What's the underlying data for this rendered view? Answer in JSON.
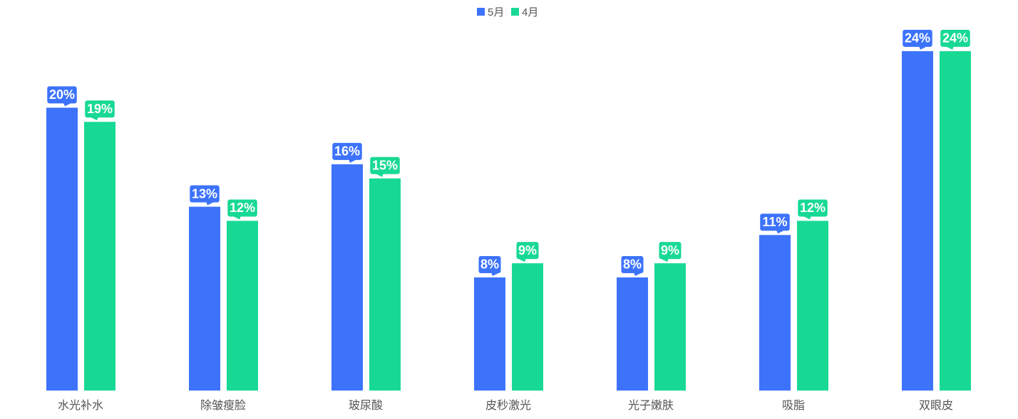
{
  "chart_data": {
    "type": "bar",
    "categories": [
      "水光补水",
      "除皱瘦脸",
      "玻尿酸",
      "皮秒激光",
      "光子嫩肤",
      "吸脂",
      "双眼皮"
    ],
    "series": [
      {
        "name": "5月",
        "color": "#3d73fb",
        "values": [
          20,
          13,
          16,
          8,
          8,
          11,
          24
        ],
        "value_labels": [
          "20%",
          "13%",
          "16%",
          "8%",
          "8%",
          "11%",
          "24%"
        ]
      },
      {
        "name": "4月",
        "color": "#18d994",
        "values": [
          19,
          12,
          15,
          9,
          9,
          12,
          24
        ],
        "value_labels": [
          "19%",
          "12%",
          "15%",
          "9%",
          "9%",
          "12%",
          "24%"
        ]
      }
    ],
    "ylim": [
      0,
      25
    ],
    "legend": "top"
  }
}
